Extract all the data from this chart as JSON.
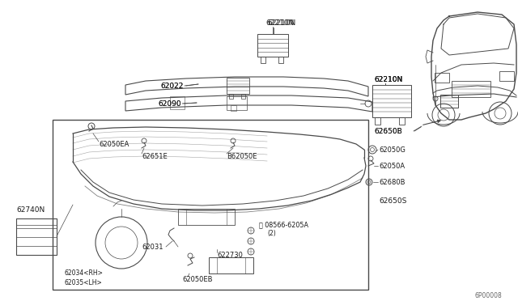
{
  "bg_color": "#ffffff",
  "line_color": "#4a4a4a",
  "label_color": "#1a1a1a",
  "diagram_code": "6P00008",
  "figsize": [
    6.4,
    3.72
  ],
  "dpi": 100,
  "xlim": [
    0,
    640
  ],
  "ylim": [
    0,
    372
  ]
}
